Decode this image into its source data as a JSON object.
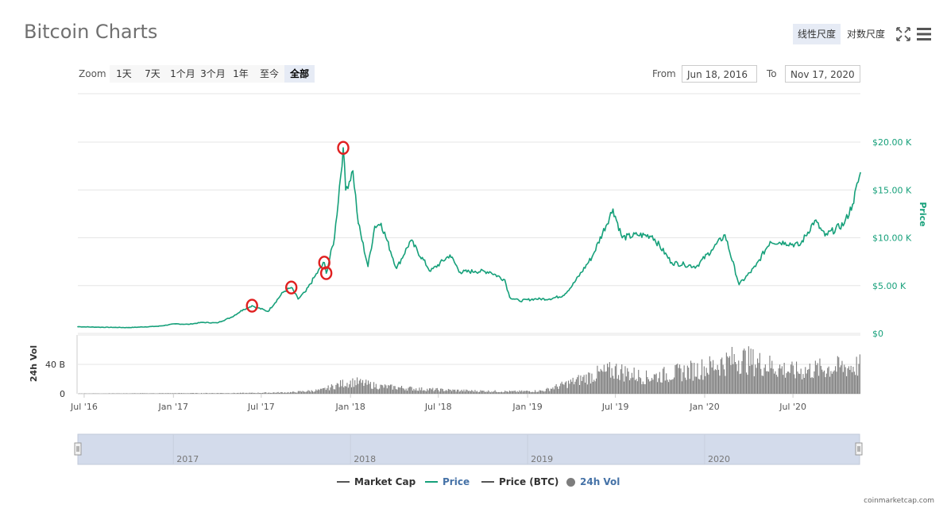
{
  "page": {
    "title": "Bitcoin Charts",
    "scale_buttons": [
      "线性尺度",
      "对数尺度"
    ],
    "active_scale": 0,
    "zoom_label": "Zoom",
    "zoom_buttons": [
      "1天",
      "7天",
      "1个月",
      "3个月",
      "1年",
      "至今",
      "全部"
    ],
    "active_zoom": 6,
    "from_label": "From",
    "from_value": "Jun 18, 2016",
    "to_label": "To",
    "to_value": "Nov 17, 2020",
    "credits": "coinmarketcap.com",
    "colors": {
      "price": "#16a07a",
      "volume": "#7d7d7d",
      "marketcap": "#555555",
      "marker": "#e02020",
      "navigator": "#d3dbeb"
    }
  },
  "chart_data": {
    "type": "line",
    "title": "",
    "y_axis_price": {
      "label": "Price",
      "ticks": [
        "$0",
        "$5.00 K",
        "$10.00 K",
        "$15.00 K",
        "$20.00 K"
      ],
      "ylim": [
        0,
        20000
      ]
    },
    "y_axis_volume": {
      "label": "24h Vol",
      "ticks": [
        "0",
        "40 B"
      ],
      "ylim": [
        0,
        80
      ]
    },
    "x_ticks": [
      "Jul '16",
      "Jan '17",
      "Jul '17",
      "Jan '18",
      "Jul '18",
      "Jan '19",
      "Jul '19",
      "Jan '20",
      "Jul '20"
    ],
    "navigator_labels": [
      "2017",
      "2018",
      "2019",
      "2020"
    ],
    "legend": [
      {
        "name": "Market Cap",
        "color": "#555555",
        "kind": "line"
      },
      {
        "name": "Price",
        "color": "#16a07a",
        "kind": "line"
      },
      {
        "name": "Price (BTC)",
        "color": "#555555",
        "kind": "line"
      },
      {
        "name": "24h Vol",
        "color": "#7d7d7d",
        "kind": "dot"
      }
    ],
    "series": [
      {
        "name": "Price",
        "x": [
          "2016-06-18",
          "2016-08-01",
          "2016-10-01",
          "2016-12-01",
          "2017-01-05",
          "2017-02-01",
          "2017-03-01",
          "2017-04-01",
          "2017-05-01",
          "2017-05-25",
          "2017-06-12",
          "2017-07-15",
          "2017-08-15",
          "2017-09-01",
          "2017-09-15",
          "2017-10-01",
          "2017-10-20",
          "2017-11-08",
          "2017-11-12",
          "2017-11-29",
          "2017-12-17",
          "2017-12-22",
          "2018-01-06",
          "2018-01-17",
          "2018-02-06",
          "2018-02-20",
          "2018-03-05",
          "2018-04-06",
          "2018-05-05",
          "2018-06-15",
          "2018-07-25",
          "2018-08-15",
          "2018-09-15",
          "2018-10-15",
          "2018-11-15",
          "2018-11-25",
          "2018-12-15",
          "2019-01-15",
          "2019-02-15",
          "2019-03-15",
          "2019-04-03",
          "2019-05-14",
          "2019-06-26",
          "2019-07-15",
          "2019-08-15",
          "2019-09-15",
          "2019-10-25",
          "2019-11-20",
          "2019-12-15",
          "2020-01-15",
          "2020-02-12",
          "2020-03-12",
          "2020-04-15",
          "2020-05-15",
          "2020-06-15",
          "2020-07-15",
          "2020-08-15",
          "2020-09-05",
          "2020-10-15",
          "2020-11-01",
          "2020-11-17"
        ],
        "values": [
          700,
          650,
          610,
          750,
          1000,
          950,
          1150,
          1100,
          1700,
          2500,
          2900,
          2300,
          4300,
          4800,
          3600,
          4400,
          6000,
          7400,
          6300,
          10000,
          19400,
          15000,
          17000,
          11500,
          7000,
          11200,
          11500,
          6800,
          9700,
          6500,
          8200,
          6400,
          6500,
          6450,
          5600,
          3800,
          3400,
          3600,
          3600,
          3950,
          5000,
          8000,
          13000,
          10000,
          10300,
          10200,
          7400,
          7200,
          7000,
          8700,
          10300,
          5100,
          7000,
          9600,
          9500,
          9200,
          11800,
          10200,
          11500,
          13500,
          16800
        ]
      },
      {
        "name": "24h Vol",
        "x": [
          "2016-06-18",
          "2017-06-01",
          "2017-09-01",
          "2017-11-01",
          "2017-12-15",
          "2018-01-10",
          "2018-03-01",
          "2018-06-01",
          "2018-09-01",
          "2018-12-01",
          "2019-02-01",
          "2019-04-03",
          "2019-05-20",
          "2019-07-01",
          "2019-09-01",
          "2019-11-01",
          "2020-01-01",
          "2020-03-12",
          "2020-05-01",
          "2020-07-01",
          "2020-09-01",
          "2020-11-17"
        ],
        "values": [
          0.3,
          1,
          2,
          5,
          14,
          16,
          10,
          6,
          4,
          3,
          4,
          16,
          26,
          32,
          22,
          28,
          35,
          48,
          40,
          30,
          34,
          38
        ]
      }
    ],
    "highlighted_points": [
      {
        "x": "2017-06-12",
        "y": 2900
      },
      {
        "x": "2017-09-01",
        "y": 4800
      },
      {
        "x": "2017-11-08",
        "y": 7400
      },
      {
        "x": "2017-11-12",
        "y": 6300
      },
      {
        "x": "2017-12-17",
        "y": 19400
      }
    ]
  }
}
